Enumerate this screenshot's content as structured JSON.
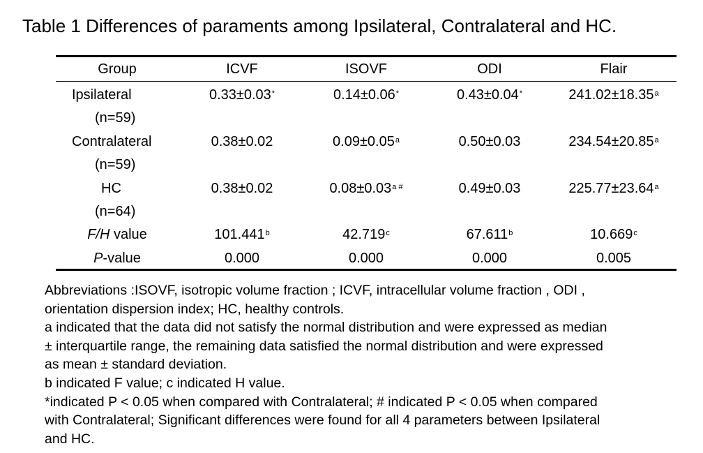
{
  "title": "Table 1 Differences of paraments among Ipsilateral, Contralateral and HC.",
  "table": {
    "headers": [
      "Group",
      "ICVF",
      "ISOVF",
      "ODI",
      "Flair"
    ],
    "rows": [
      {
        "group": "Ipsilateral",
        "n": "(n=59)",
        "cells": [
          {
            "v": "0.33±0.03",
            "s": "*"
          },
          {
            "v": "0.14±0.06",
            "s": "*"
          },
          {
            "v": "0.43±0.04",
            "s": "*"
          },
          {
            "v": "241.02±18.35",
            "s": "a"
          }
        ]
      },
      {
        "group": "Contralateral",
        "n": "(n=59)",
        "cells": [
          {
            "v": "0.38±0.02",
            "s": ""
          },
          {
            "v": "0.09±0.05",
            "s": "a"
          },
          {
            "v": "0.50±0.03",
            "s": ""
          },
          {
            "v": "234.54±20.85",
            "s": "a"
          }
        ]
      },
      {
        "group": "HC",
        "n": "(n=64)",
        "cells": [
          {
            "v": "0.38±0.02",
            "s": ""
          },
          {
            "v": "0.08±0.03",
            "s": "a #"
          },
          {
            "v": "0.49±0.03",
            "s": ""
          },
          {
            "v": "225.77±23.64",
            "s": "a"
          }
        ]
      }
    ],
    "fh_row": {
      "label_italic": "F/H",
      "label_rest": " value",
      "cells": [
        {
          "v": "101.441",
          "s": "b"
        },
        {
          "v": "42.719",
          "s": "c"
        },
        {
          "v": "67.611",
          "s": "b"
        },
        {
          "v": "10.669",
          "s": "c"
        }
      ]
    },
    "p_row": {
      "label_italic": "P",
      "label_rest": "-value",
      "cells": [
        "0.000",
        "0.000",
        "0.000",
        "0.005"
      ]
    }
  },
  "notes": [
    "Abbreviations :ISOVF, isotropic volume fraction ; ICVF, intracellular volume fraction , ODI ,",
    "orientation dispersion index; HC, healthy controls.",
    "a indicated that the data did not satisfy the normal distribution and were expressed as median",
    "± interquartile range, the remaining data satisfied the normal distribution and were expressed",
    "as mean ± standard deviation.",
    "b indicated F value; c indicated H value.",
    "*indicated P < 0.05 when compared with Contralateral;  # indicated P < 0.05 when compared",
    "with Contralateral; Significant differences were found for all 4 parameters between Ipsilateral",
    "and HC."
  ]
}
